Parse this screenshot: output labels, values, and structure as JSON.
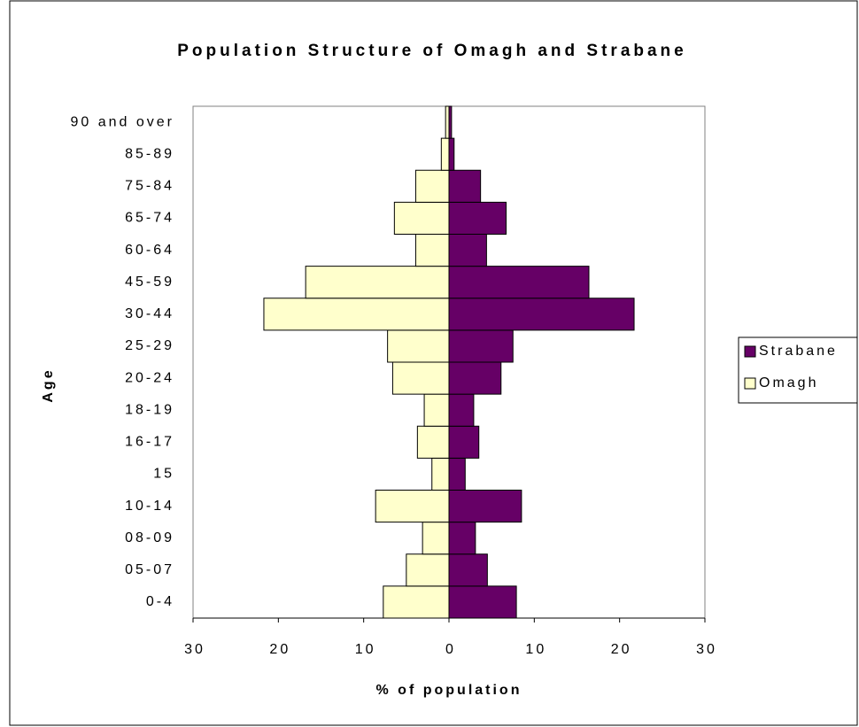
{
  "chart_data": {
    "type": "pyramid",
    "title": "Population Structure of Omagh and Strabane",
    "x_label": "% of population",
    "y_label": "Age",
    "categories": [
      "0-4",
      "05-07",
      "08-09",
      "10-14",
      "15",
      "16-17",
      "18-19",
      "20-24",
      "25-29",
      "30-44",
      "45-59",
      "60-64",
      "65-74",
      "75-84",
      "85-89",
      "90 and over"
    ],
    "series": [
      {
        "name": "Strabane",
        "color": "#660066",
        "values": [
          7.9,
          4.5,
          3.1,
          8.5,
          1.9,
          3.5,
          2.9,
          6.1,
          7.5,
          21.7,
          16.4,
          4.4,
          6.7,
          3.7,
          0.6,
          0.3
        ]
      },
      {
        "name": "Omagh",
        "color": "#ffffcc",
        "values": [
          -7.7,
          -5.0,
          -3.1,
          -8.6,
          -2.0,
          -3.7,
          -2.9,
          -6.6,
          -7.2,
          -21.7,
          -16.8,
          -3.9,
          -6.4,
          -3.9,
          -0.9,
          -0.4
        ]
      }
    ],
    "xlim": [
      -30,
      30
    ],
    "xticks": [
      {
        "value": -30,
        "label": "30"
      },
      {
        "value": -20,
        "label": "20"
      },
      {
        "value": -10,
        "label": "10"
      },
      0,
      10,
      20,
      30
    ],
    "negative_tick_color": "#ff0000",
    "legend": "right"
  }
}
